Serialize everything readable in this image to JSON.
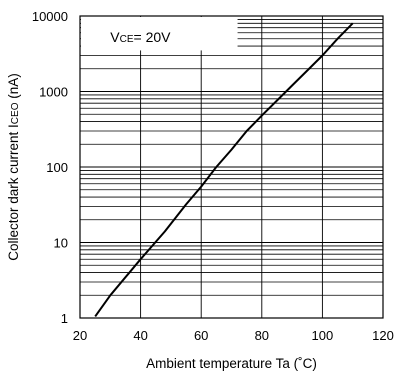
{
  "chart_data": {
    "type": "line",
    "xlabel": "Ambient temperature Ta (˚C)",
    "xlabel_parts": {
      "main": "Ambient temperature Ta (",
      "deg": "˚",
      "end": "C)"
    },
    "ylabel": "Collector dark current ICEO (nA)",
    "ylabel_parts": {
      "main": "Collector dark current I",
      "sub": "CEO",
      "end": " (nA)"
    },
    "annotation": {
      "main": "V",
      "sub": "CE",
      "rest": "= 20V"
    },
    "x_ticks": [
      20,
      40,
      60,
      80,
      100,
      120
    ],
    "y_ticks": [
      1,
      10,
      100,
      1000,
      10000
    ],
    "y_tick_labels": [
      "1",
      "10",
      "100",
      "1000",
      "10000"
    ],
    "xlim": [
      20,
      120
    ],
    "ylim": [
      1,
      10000
    ],
    "y_scale": "log",
    "grid": "horizontal log minor gridlines; vertical gridlines at x ticks",
    "series": [
      {
        "x": [
          25,
          30,
          40,
          48,
          55,
          60,
          65,
          70,
          75,
          80,
          85,
          90,
          95,
          100,
          105,
          110
        ],
        "y": [
          1.05,
          2,
          6,
          14,
          32,
          55,
          100,
          170,
          300,
          480,
          760,
          1200,
          1900,
          3000,
          5000,
          8000
        ],
        "color": "#000000"
      }
    ]
  }
}
